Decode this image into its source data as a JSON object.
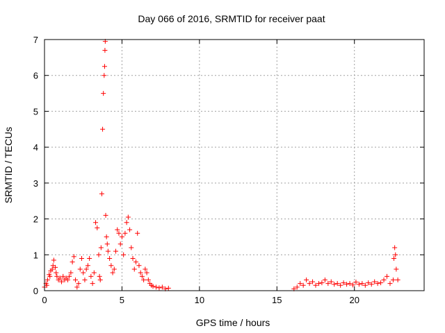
{
  "chart_data": {
    "type": "scatter",
    "title": "Day 066 of 2016, SRMTID for receiver paat",
    "xlabel": "GPS time / hours",
    "ylabel": "SRMTID / TECUs",
    "xlim": [
      0,
      24.5
    ],
    "ylim": [
      0,
      7
    ],
    "xticks": [
      0,
      5,
      10,
      15,
      20
    ],
    "yticks": [
      0,
      1,
      2,
      3,
      4,
      5,
      6,
      7
    ],
    "xtick_labels": [
      "0",
      "5",
      "10",
      "15",
      "20"
    ],
    "ytick_labels": [
      "0",
      "1",
      "2",
      "3",
      "4",
      "5",
      "6",
      "7"
    ],
    "grid": true,
    "marker": "+",
    "color": "#ff0000",
    "series": [
      {
        "name": "SRMTID",
        "x": [
          0.0,
          0.1,
          0.15,
          0.2,
          0.3,
          0.35,
          0.4,
          0.5,
          0.55,
          0.6,
          0.7,
          0.75,
          0.8,
          0.9,
          1.0,
          1.1,
          1.2,
          1.3,
          1.4,
          1.5,
          1.6,
          1.7,
          1.8,
          1.9,
          2.0,
          2.1,
          2.2,
          2.3,
          2.4,
          2.5,
          2.6,
          2.7,
          2.8,
          2.9,
          3.0,
          3.1,
          3.2,
          3.3,
          3.4,
          3.5,
          3.55,
          3.6,
          3.65,
          3.7,
          3.75,
          3.8,
          3.85,
          3.88,
          3.9,
          3.92,
          3.95,
          4.0,
          4.05,
          4.1,
          4.2,
          4.3,
          4.4,
          4.5,
          4.6,
          4.7,
          4.8,
          4.9,
          5.0,
          5.1,
          5.2,
          5.3,
          5.4,
          5.5,
          5.6,
          5.7,
          5.8,
          5.9,
          6.0,
          6.1,
          6.2,
          6.3,
          6.4,
          6.5,
          6.6,
          6.7,
          6.8,
          6.9,
          7.0,
          7.2,
          7.4,
          7.6,
          7.8,
          8.0,
          16.1,
          16.3,
          16.5,
          16.7,
          16.9,
          17.1,
          17.3,
          17.5,
          17.7,
          17.9,
          18.1,
          18.3,
          18.5,
          18.7,
          18.9,
          19.1,
          19.3,
          19.5,
          19.7,
          19.9,
          20.1,
          20.3,
          20.5,
          20.7,
          20.9,
          21.1,
          21.3,
          21.5,
          21.7,
          21.9,
          22.1,
          22.3,
          22.5,
          22.55,
          22.6,
          22.65,
          22.7,
          22.8
        ],
        "y": [
          0.1,
          0.2,
          0.15,
          0.3,
          0.45,
          0.4,
          0.55,
          0.6,
          0.7,
          0.85,
          0.65,
          0.5,
          0.4,
          0.3,
          0.35,
          0.25,
          0.4,
          0.3,
          0.35,
          0.3,
          0.4,
          0.5,
          0.8,
          0.95,
          0.3,
          0.1,
          0.2,
          0.6,
          0.9,
          0.5,
          0.3,
          0.6,
          0.7,
          0.9,
          0.4,
          0.2,
          0.5,
          1.9,
          1.75,
          1.0,
          0.4,
          0.3,
          1.2,
          2.7,
          4.5,
          5.5,
          6.0,
          6.25,
          6.7,
          6.95,
          2.1,
          1.5,
          1.3,
          1.1,
          0.9,
          0.7,
          0.5,
          0.6,
          1.1,
          1.7,
          1.6,
          1.3,
          1.5,
          1.0,
          1.6,
          1.9,
          2.05,
          1.7,
          1.2,
          0.9,
          0.6,
          0.8,
          1.6,
          0.7,
          0.5,
          0.4,
          0.3,
          0.6,
          0.5,
          0.3,
          0.2,
          0.15,
          0.12,
          0.1,
          0.08,
          0.1,
          0.05,
          0.07,
          0.05,
          0.1,
          0.2,
          0.15,
          0.3,
          0.2,
          0.25,
          0.15,
          0.2,
          0.22,
          0.3,
          0.2,
          0.25,
          0.18,
          0.2,
          0.15,
          0.22,
          0.18,
          0.2,
          0.16,
          0.24,
          0.18,
          0.2,
          0.15,
          0.22,
          0.18,
          0.25,
          0.2,
          0.22,
          0.3,
          0.4,
          0.2,
          0.3,
          0.9,
          1.2,
          1.0,
          0.6,
          0.3
        ]
      }
    ]
  }
}
